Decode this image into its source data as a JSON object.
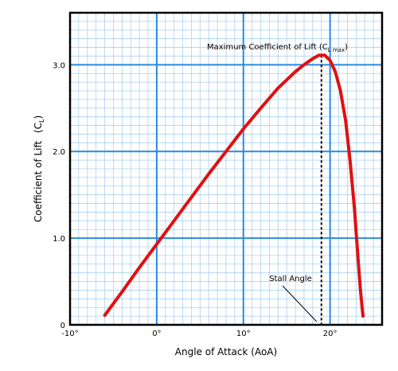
{
  "chart_data": {
    "type": "line",
    "title": "",
    "xlabel": "Angle of Attack (AoA)",
    "ylabel": "Coefficient of Lift",
    "ylabel_symbol": "C",
    "ylabel_symbol_sub": "L",
    "xlim": [
      -10,
      26
    ],
    "ylim": [
      0,
      3.6
    ],
    "grid": true,
    "xticks": [
      {
        "value": -10,
        "label": "-10°"
      },
      {
        "value": 0,
        "label": "0°"
      },
      {
        "value": 10,
        "label": "10°"
      },
      {
        "value": 20,
        "label": "20°"
      }
    ],
    "yticks": [
      {
        "value": 0,
        "label": "0"
      },
      {
        "value": 1,
        "label": "1.0"
      },
      {
        "value": 2,
        "label": "2.0"
      },
      {
        "value": 3,
        "label": "3.0"
      }
    ],
    "series": [
      {
        "color": "#e01010",
        "points": [
          [
            -6,
            0.11
          ],
          [
            -4,
            0.38
          ],
          [
            -2,
            0.66
          ],
          [
            0,
            0.93
          ],
          [
            2,
            1.2
          ],
          [
            4,
            1.47
          ],
          [
            6,
            1.74
          ],
          [
            8,
            2.0
          ],
          [
            10,
            2.26
          ],
          [
            12,
            2.5
          ],
          [
            14,
            2.73
          ],
          [
            16,
            2.92
          ],
          [
            17,
            3.0
          ],
          [
            18,
            3.07
          ],
          [
            18.7,
            3.11
          ],
          [
            19.4,
            3.11
          ],
          [
            20,
            3.05
          ],
          [
            20.6,
            2.92
          ],
          [
            21.2,
            2.7
          ],
          [
            21.8,
            2.35
          ],
          [
            22.3,
            1.9
          ],
          [
            22.8,
            1.35
          ],
          [
            23.2,
            0.8
          ],
          [
            23.5,
            0.4
          ],
          [
            23.8,
            0.1
          ]
        ]
      }
    ],
    "annotations": {
      "max_label": "Maximum Coefficient of Lift (C",
      "max_label_sub": "L max",
      "max_label_end": ")",
      "stall_label": "Stall Angle",
      "stall_angle": 19.0,
      "cl_max": 3.11
    },
    "colors": {
      "grid_major": "#2a8ae0",
      "grid_minor": "#a9d1f3",
      "curve": "#e01010",
      "frame": "#000000"
    }
  }
}
